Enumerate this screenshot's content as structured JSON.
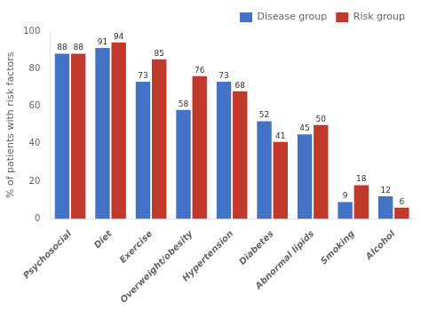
{
  "chart_data": {
    "type": "bar",
    "categories": [
      "Psychosocial",
      "Diet",
      "Exercise",
      "Overweight/obesity",
      "Hypertension",
      "Diabetes",
      "Abnormal lipids",
      "Smoking",
      "Alcohol"
    ],
    "series": [
      {
        "name": "Disease group",
        "color": "#4472C4",
        "values": [
          88,
          91,
          73,
          58,
          73,
          52,
          45,
          9,
          12
        ]
      },
      {
        "name": "Risk group",
        "color": "#C0392B",
        "values": [
          88,
          94,
          85,
          76,
          68,
          41,
          50,
          18,
          6
        ]
      }
    ],
    "ylabel": "% of patients with risk factors",
    "ylim": [
      0,
      100
    ],
    "yticks": [
      0,
      20,
      40,
      60,
      80,
      100
    ],
    "grid": false,
    "legend": "upper right",
    "data_labels": true
  }
}
